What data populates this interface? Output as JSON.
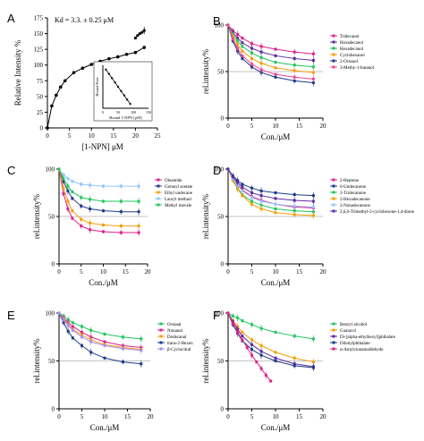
{
  "chart_data": [
    {
      "panel": "A",
      "type": "scatter",
      "annotation": "Kd = 3.3. ± 0.25 μM",
      "xlabel": "[1-NPN] μM",
      "ylabel": "Relative Intensity %",
      "xlim": [
        0,
        25
      ],
      "ylim": [
        0,
        175
      ],
      "xticks": [
        "0",
        "5",
        "10",
        "15",
        "20",
        "25"
      ],
      "yticks": [
        "0",
        "25",
        "50",
        "75",
        "100",
        "125",
        "150",
        "175"
      ],
      "series": [
        {
          "x": [
            0,
            1,
            2,
            3,
            4,
            6,
            8,
            10,
            12,
            14,
            16,
            18,
            20,
            22
          ],
          "y": [
            0,
            35,
            52,
            65,
            75,
            88,
            95,
            101,
            106,
            110,
            113,
            117,
            120,
            128
          ]
        },
        {
          "x": [
            20,
            20.5,
            21,
            21.5,
            22
          ],
          "y": [
            143,
            147,
            150,
            152,
            155
          ]
        }
      ],
      "inset": {
        "xlabel": "Bound 1-NPN [μM]",
        "ylabel": "Bound/Free",
        "xticks": [
          "0",
          "50",
          "100",
          "150"
        ],
        "x": [
          10,
          20,
          30,
          40,
          50,
          60,
          70,
          80,
          90
        ],
        "y": [
          0.9,
          0.8,
          0.7,
          0.6,
          0.5,
          0.4,
          0.3,
          0.2,
          0.1
        ]
      }
    },
    {
      "panel": "B",
      "type": "line",
      "xlabel": "Con./μM",
      "ylabel": "rel.intensity%",
      "xlim": [
        0,
        20
      ],
      "ylim": [
        0,
        100
      ],
      "xticks": [
        "0",
        "5",
        "10",
        "15",
        "20"
      ],
      "yticks": [
        "0",
        "50",
        "100"
      ],
      "x": [
        0,
        1,
        2,
        3,
        5,
        7,
        10,
        14,
        18
      ],
      "series": [
        {
          "name": "Tridecanol",
          "color": "#e0218a",
          "values": [
            100,
            94,
            90,
            86,
            80,
            77,
            74,
            71,
            69
          ]
        },
        {
          "name": "Hexadecanol",
          "color": "#5a2ca0",
          "values": [
            100,
            92,
            86,
            81,
            75,
            71,
            67,
            64,
            62
          ]
        },
        {
          "name": "Hexadecanol",
          "color": "#22c55e",
          "values": [
            100,
            90,
            83,
            77,
            70,
            65,
            60,
            57,
            55
          ]
        },
        {
          "name": "Cyclohexanol",
          "color": "#f59e0b",
          "values": [
            100,
            88,
            79,
            72,
            64,
            59,
            54,
            51,
            49
          ]
        },
        {
          "name": "2-Octanol",
          "color": "#1e3a8a",
          "values": [
            100,
            83,
            72,
            64,
            55,
            49,
            44,
            40,
            38
          ]
        },
        {
          "name": "3-Methy-1-butanol",
          "color": "#ec4899",
          "values": [
            100,
            85,
            75,
            67,
            58,
            52,
            47,
            44,
            42
          ]
        }
      ]
    },
    {
      "panel": "C",
      "type": "line",
      "xlabel": "Con./μM",
      "ylabel": "rel.intensity%",
      "xlim": [
        0,
        20
      ],
      "ylim": [
        0,
        100
      ],
      "xticks": [
        "0",
        "5",
        "10",
        "15",
        "20"
      ],
      "yticks": [
        "0",
        "50",
        "100"
      ],
      "x": [
        0,
        1,
        2,
        3,
        5,
        7,
        10,
        14,
        18
      ],
      "series": [
        {
          "name": "Oleamide",
          "color": "#e0218a",
          "values": [
            100,
            74,
            58,
            48,
            40,
            36,
            34,
            33,
            33
          ]
        },
        {
          "name": "Geranyl acetate",
          "color": "#1e3a8a",
          "values": [
            100,
            87,
            77,
            69,
            61,
            58,
            56,
            55,
            55
          ]
        },
        {
          "name": "Ethyl undecane",
          "color": "#f59e0b",
          "values": [
            100,
            80,
            66,
            56,
            47,
            43,
            41,
            40,
            40
          ]
        },
        {
          "name": "Lauryl methacr",
          "color": "#93c5fd",
          "values": [
            100,
            94,
            90,
            87,
            84,
            83,
            82,
            82,
            82
          ]
        },
        {
          "name": "Methyl mevale",
          "color": "#22c55e",
          "values": [
            100,
            90,
            82,
            76,
            70,
            68,
            66,
            66,
            66
          ]
        }
      ]
    },
    {
      "panel": "D",
      "type": "line",
      "xlabel": "Con./μM",
      "ylabel": "rel.intensity%",
      "xlim": [
        0,
        20
      ],
      "ylim": [
        0,
        100
      ],
      "xticks": [
        "0",
        "5",
        "10",
        "15",
        "20"
      ],
      "yticks": [
        "0",
        "50",
        "100"
      ],
      "x": [
        0,
        1,
        2,
        3,
        5,
        7,
        10,
        14,
        18
      ],
      "series": [
        {
          "name": "2-Heptone",
          "color": "#e0218a",
          "values": [
            100,
            91,
            84,
            78,
            71,
            67,
            63,
            60,
            59
          ]
        },
        {
          "name": "6-Undecanone",
          "color": "#1e3a8a",
          "values": [
            100,
            93,
            88,
            84,
            80,
            77,
            75,
            73,
            72
          ]
        },
        {
          "name": "2-Tridecanone",
          "color": "#22c55e",
          "values": [
            100,
            89,
            80,
            73,
            66,
            62,
            58,
            56,
            55
          ]
        },
        {
          "name": "2-Hexadecanone",
          "color": "#f59e0b",
          "values": [
            100,
            88,
            79,
            72,
            63,
            58,
            54,
            52,
            51
          ]
        },
        {
          "name": "2-Nonadecanone",
          "color": "#93c5fd",
          "values": [
            100,
            90,
            83,
            77,
            70,
            66,
            63,
            61,
            60
          ]
        },
        {
          "name": "2,6,6-Trimethyl-2-cyclohexene-1,4-dione",
          "color": "#5a2ca0",
          "values": [
            100,
            92,
            86,
            81,
            75,
            72,
            69,
            67,
            66
          ]
        }
      ]
    },
    {
      "panel": "E",
      "type": "line",
      "xlabel": "Con./μM",
      "ylabel": "rel.intensity%",
      "xlim": [
        0,
        20
      ],
      "ylim": [
        0,
        100
      ],
      "xticks": [
        "0",
        "5",
        "10",
        "15",
        "20"
      ],
      "yticks": [
        "0",
        "50",
        "100"
      ],
      "x": [
        0,
        1,
        2,
        3,
        5,
        7,
        10,
        14,
        18
      ],
      "series": [
        {
          "name": "Octanal",
          "color": "#22c55e",
          "values": [
            100,
            97,
            93,
            90,
            86,
            82,
            78,
            75,
            73
          ]
        },
        {
          "name": "Nonanal",
          "color": "#e0218a",
          "values": [
            100,
            95,
            90,
            86,
            80,
            75,
            70,
            66,
            64
          ]
        },
        {
          "name": "Dodecanal",
          "color": "#f59e0b",
          "values": [
            100,
            94,
            88,
            83,
            77,
            72,
            67,
            64,
            62
          ]
        },
        {
          "name": "trans-2-Hexen",
          "color": "#1e3a8a",
          "values": [
            100,
            90,
            81,
            74,
            66,
            59,
            53,
            49,
            47
          ]
        },
        {
          "name": "β-Cyclocitral",
          "color": "#a78bfa",
          "values": [
            100,
            93,
            87,
            82,
            75,
            70,
            66,
            63,
            61
          ]
        }
      ]
    },
    {
      "panel": "F",
      "type": "line",
      "xlabel": "Con./μM",
      "ylabel": "rel.intensity%",
      "xlim": [
        0,
        20
      ],
      "ylim": [
        0,
        100
      ],
      "xticks": [
        "0",
        "5",
        "10",
        "15",
        "20"
      ],
      "yticks": [
        "0",
        "50",
        "100"
      ],
      "series": [
        {
          "name": "Benzyl alcohol",
          "color": "#22c55e",
          "x": [
            0,
            1,
            2,
            3,
            5,
            7,
            10,
            14,
            18
          ],
          "values": [
            100,
            97,
            95,
            92,
            88,
            84,
            80,
            76,
            73
          ]
        },
        {
          "name": "Guaiacol",
          "color": "#f59e0b",
          "x": [
            0,
            1,
            2,
            3,
            5,
            7,
            10,
            14,
            18
          ],
          "values": [
            100,
            92,
            86,
            80,
            72,
            66,
            59,
            53,
            49
          ]
        },
        {
          "name": "Di-[alpha-ethylhexyl]phthalate",
          "color": "#5a2ca0",
          "x": [
            0,
            1,
            2,
            3,
            5,
            7,
            10,
            14,
            18
          ],
          "values": [
            100,
            91,
            83,
            76,
            67,
            60,
            53,
            47,
            44
          ]
        },
        {
          "name": "Dibutylphthalate",
          "color": "#1e3a8a",
          "x": [
            0,
            1,
            2,
            3,
            5,
            7,
            10,
            14,
            18
          ],
          "values": [
            100,
            88,
            79,
            71,
            62,
            56,
            50,
            45,
            43
          ]
        },
        {
          "name": "α-Amylcinnamaldehyde",
          "color": "#e0218a",
          "x": [
            0,
            1,
            2,
            3,
            4,
            5,
            6,
            7,
            8,
            9
          ],
          "values": [
            100,
            89,
            80,
            72,
            64,
            56,
            49,
            42,
            35,
            29
          ]
        }
      ]
    }
  ]
}
